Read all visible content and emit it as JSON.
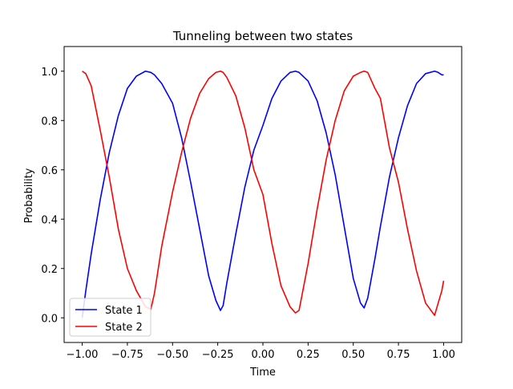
{
  "chart_data": {
    "type": "line",
    "title": "Tunneling between two states",
    "xlabel": "Time",
    "ylabel": "Probability",
    "xlim": [
      -1.1,
      1.1
    ],
    "ylim": [
      -0.1,
      1.1
    ],
    "xticks": [
      -1.0,
      -0.75,
      -0.5,
      -0.25,
      0.0,
      0.25,
      0.5,
      0.75,
      1.0
    ],
    "xtick_labels": [
      "−1.00",
      "−0.75",
      "−0.50",
      "−0.25",
      "0.00",
      "0.25",
      "0.50",
      "0.75",
      "1.00"
    ],
    "yticks": [
      0.0,
      0.2,
      0.4,
      0.6,
      0.8,
      1.0
    ],
    "ytick_labels": [
      "0.0",
      "0.2",
      "0.4",
      "0.6",
      "0.8",
      "1.0"
    ],
    "grid": false,
    "legend_position": "lower-left",
    "series": [
      {
        "name": "State 1",
        "color": "#0000ff",
        "x": [
          -1.0,
          -0.98,
          -0.95,
          -0.9,
          -0.85,
          -0.8,
          -0.75,
          -0.7,
          -0.65,
          -0.62,
          -0.6,
          -0.56,
          -0.5,
          -0.45,
          -0.4,
          -0.35,
          -0.3,
          -0.26,
          -0.235,
          -0.22,
          -0.2,
          -0.15,
          -0.1,
          -0.05,
          0.0,
          0.05,
          0.1,
          0.15,
          0.18,
          0.2,
          0.25,
          0.3,
          0.35,
          0.4,
          0.45,
          0.5,
          0.54,
          0.56,
          0.58,
          0.62,
          0.65,
          0.7,
          0.75,
          0.8,
          0.85,
          0.9,
          0.95,
          0.97,
          0.99,
          1.0
        ],
        "y": [
          0.0,
          0.11,
          0.26,
          0.48,
          0.67,
          0.82,
          0.93,
          0.98,
          1.0,
          0.995,
          0.985,
          0.95,
          0.87,
          0.73,
          0.55,
          0.36,
          0.17,
          0.07,
          0.03,
          0.05,
          0.14,
          0.34,
          0.53,
          0.68,
          0.78,
          0.89,
          0.96,
          0.995,
          1.0,
          0.995,
          0.96,
          0.88,
          0.75,
          0.58,
          0.37,
          0.16,
          0.06,
          0.04,
          0.08,
          0.24,
          0.37,
          0.57,
          0.73,
          0.86,
          0.95,
          0.99,
          1.0,
          0.995,
          0.985,
          0.985
        ]
      },
      {
        "name": "State 2",
        "color": "#ff0000",
        "x": [
          -1.0,
          -0.98,
          -0.95,
          -0.9,
          -0.85,
          -0.8,
          -0.75,
          -0.7,
          -0.65,
          -0.62,
          -0.6,
          -0.56,
          -0.5,
          -0.45,
          -0.4,
          -0.35,
          -0.3,
          -0.26,
          -0.235,
          -0.22,
          -0.2,
          -0.15,
          -0.1,
          -0.05,
          0.0,
          0.05,
          0.1,
          0.15,
          0.18,
          0.2,
          0.25,
          0.3,
          0.35,
          0.4,
          0.45,
          0.5,
          0.54,
          0.56,
          0.58,
          0.62,
          0.65,
          0.7,
          0.75,
          0.8,
          0.85,
          0.9,
          0.95,
          0.97,
          0.99,
          1.0
        ],
        "y": [
          1.0,
          0.99,
          0.94,
          0.76,
          0.57,
          0.36,
          0.2,
          0.11,
          0.045,
          0.035,
          0.1,
          0.29,
          0.51,
          0.67,
          0.81,
          0.91,
          0.97,
          0.995,
          1.0,
          0.995,
          0.975,
          0.9,
          0.77,
          0.6,
          0.5,
          0.3,
          0.13,
          0.045,
          0.02,
          0.03,
          0.22,
          0.44,
          0.64,
          0.8,
          0.92,
          0.98,
          0.995,
          1.0,
          0.995,
          0.93,
          0.89,
          0.69,
          0.55,
          0.36,
          0.19,
          0.06,
          0.01,
          0.06,
          0.11,
          0.15
        ]
      }
    ]
  }
}
